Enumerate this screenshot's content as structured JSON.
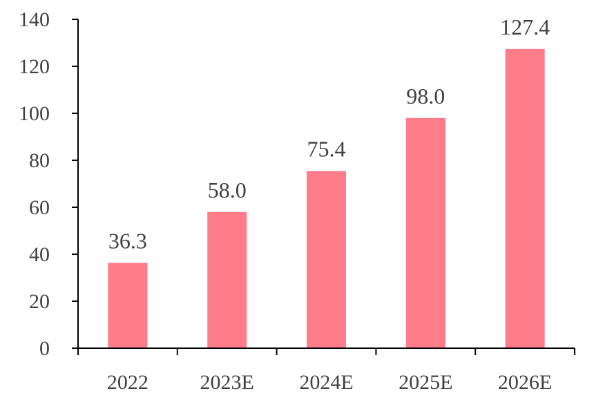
{
  "chart_data": {
    "type": "bar",
    "categories": [
      "2022",
      "2023E",
      "2024E",
      "2025E",
      "2026E"
    ],
    "values": [
      36.3,
      58.0,
      75.4,
      98.0,
      127.4
    ],
    "value_labels": [
      "36.3",
      "58.0",
      "75.4",
      "98.0",
      "127.4"
    ],
    "yticks": [
      "0",
      "20",
      "40",
      "60",
      "80",
      "100",
      "120",
      "140"
    ],
    "ylim": [
      0,
      140
    ],
    "title": "",
    "xlabel": "",
    "ylabel": "",
    "grid": false,
    "legend": "none",
    "bar_color": "#FF7C8A"
  }
}
